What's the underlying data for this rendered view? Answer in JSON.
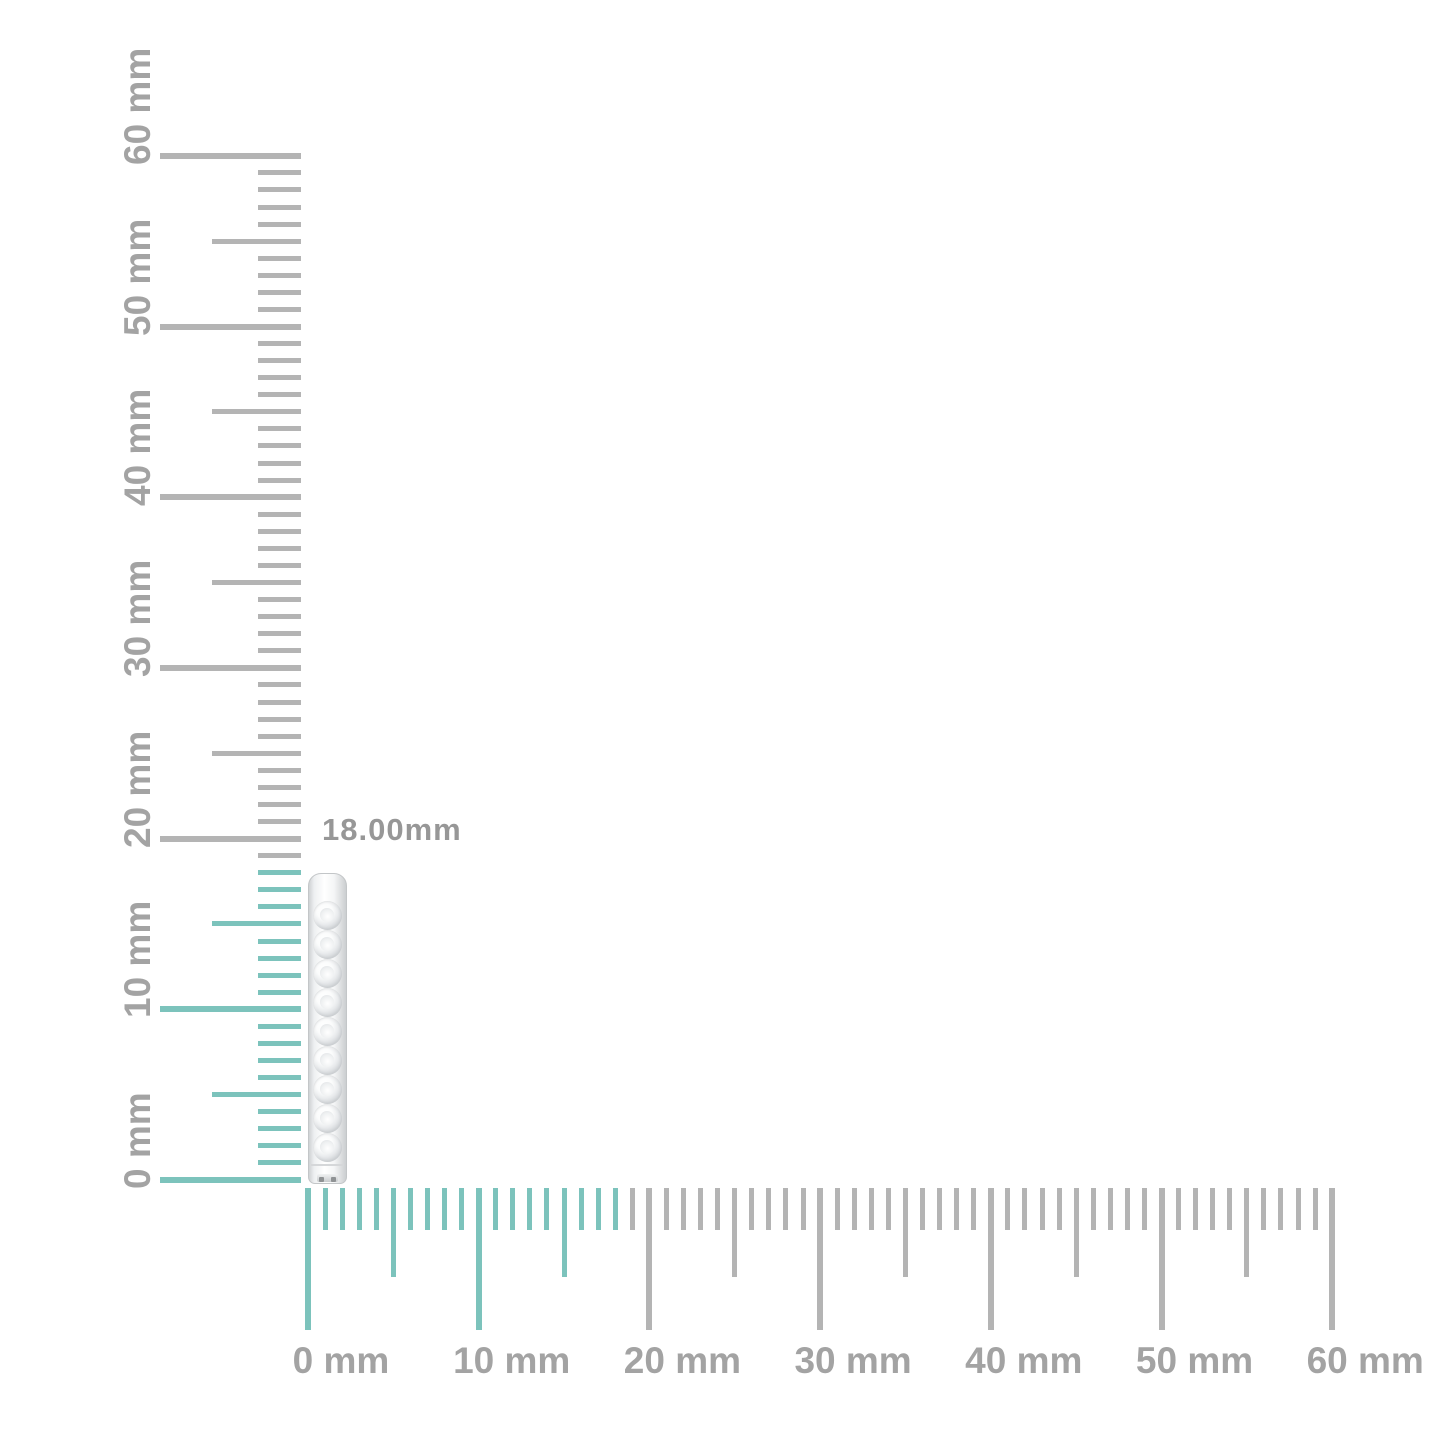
{
  "canvas": {
    "background": "#ffffff"
  },
  "measurement": {
    "value_label": "18.00mm"
  },
  "colors": {
    "highlight_teal": "#7cc3bc",
    "tick_gray": "#b4b4b4",
    "ruler_label_gray": "#a3a3a3",
    "measurement_label_gray": "#979797"
  },
  "rulers": {
    "unit": "mm",
    "max_mm": 60,
    "highlight_mm": 18,
    "major_step_mm": 10,
    "half_step_mm": 5,
    "minor_step_mm": 1,
    "vertical": {
      "labels": [
        "0 mm",
        "10 mm",
        "20 mm",
        "30 mm",
        "40 mm",
        "50 mm",
        "60 mm"
      ]
    },
    "horizontal": {
      "labels": [
        "0 mm",
        "10 mm",
        "20 mm",
        "30 mm",
        "40 mm",
        "50 mm",
        "60 mm"
      ]
    }
  },
  "product": {
    "description": "diamond-set hoop earring, side profile",
    "diamond_count": 9,
    "measured_height": "18.00mm"
  }
}
